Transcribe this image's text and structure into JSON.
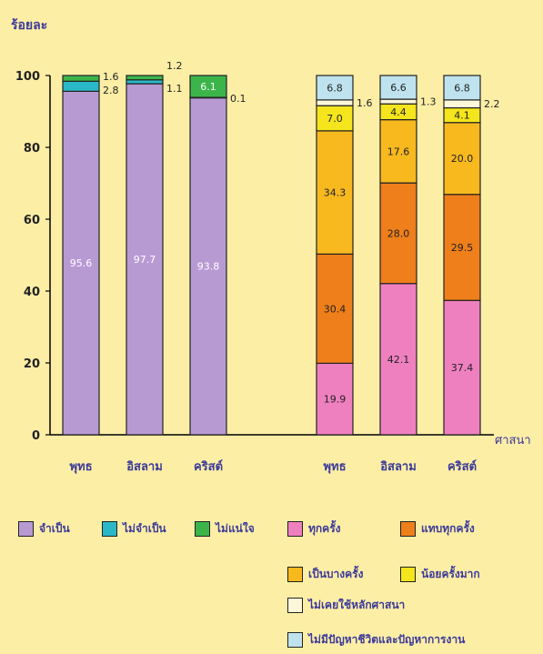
{
  "chart_data": [
    {
      "type": "bar",
      "stacked": true,
      "ylabel": "ร้อยละ",
      "xlabel": "ศาสนา",
      "ylim": [
        0,
        100
      ],
      "yticks": [
        "0",
        "20",
        "40",
        "60",
        "80",
        "100"
      ],
      "categories": [
        "พุทธ",
        "อิสลาม",
        "คริสต์"
      ],
      "series": [
        {
          "name": "จำเป็น",
          "values": [
            95.6,
            97.7,
            93.8
          ],
          "color": "#b89ad3",
          "labels": [
            "95.6",
            "97.7",
            "93.8"
          ]
        },
        {
          "name": "ไม่จำเป็น",
          "values": [
            2.8,
            1.1,
            0.1
          ],
          "color": "#2ab8c8",
          "labels": [
            "2.8",
            "1.1",
            "0.1"
          ]
        },
        {
          "name": "ไม่แน่ใจ",
          "values": [
            1.6,
            1.2,
            6.1
          ],
          "color": "#3bb54a",
          "labels": [
            "1.6",
            "1.2",
            "6.1"
          ]
        }
      ]
    },
    {
      "type": "bar",
      "stacked": true,
      "ylim": [
        0,
        100
      ],
      "categories": [
        "พุทธ",
        "อิสลาม",
        "คริสต์"
      ],
      "series": [
        {
          "name": "ทุกครั้ง",
          "values": [
            19.9,
            42.1,
            37.4
          ],
          "color": "#ef80c0",
          "labels": [
            "19.9",
            "42.1",
            "37.4"
          ]
        },
        {
          "name": "แทบทุกครั้ง",
          "values": [
            30.4,
            28.0,
            29.5
          ],
          "color": "#ef7f1a",
          "labels": [
            "30.4",
            "28.0",
            "29.5"
          ]
        },
        {
          "name": "เป็นบางครั้ง",
          "values": [
            34.3,
            17.6,
            20.0
          ],
          "color": "#f7b91e",
          "labels": [
            "34.3",
            "17.6",
            "20.0"
          ]
        },
        {
          "name": "น้อยครั้งมาก",
          "values": [
            7.0,
            4.4,
            4.1
          ],
          "color": "#f4e51c",
          "labels": [
            "7.0",
            "4.4",
            "4.1"
          ]
        },
        {
          "name": "ไม่เคยใช้หลักศาสนา",
          "values": [
            1.6,
            1.3,
            2.2
          ],
          "color": "#fdf7da",
          "labels": [
            "1.6",
            "1.3",
            "2.2"
          ]
        },
        {
          "name": "ไม่มีปัญหาชีวิตและปัญหาการงาน",
          "values": [
            6.8,
            6.6,
            6.8
          ],
          "color": "#bfe3ee",
          "labels": [
            "6.8",
            "6.6",
            "6.8"
          ]
        }
      ]
    }
  ],
  "colors": {
    "background": "#fdeea6",
    "text": "#3a3a9a",
    "axis": "#000000"
  }
}
